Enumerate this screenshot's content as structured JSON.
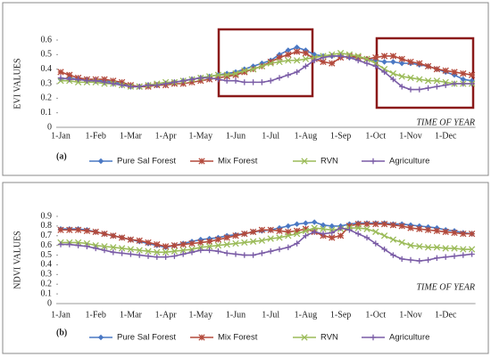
{
  "chart_data": [
    {
      "type": "line",
      "panel_label": "(a)",
      "ylabel": "EVI VALUES",
      "xlabel": "TIME OF YEAR",
      "categories": [
        "1-Jan",
        null,
        null,
        null,
        "1-Feb",
        null,
        null,
        null,
        "1-Mar",
        null,
        null,
        null,
        "1-Apr",
        null,
        null,
        null,
        "1-May",
        null,
        null,
        null,
        "1-Jun",
        null,
        null,
        null,
        "1-Jul",
        null,
        null,
        null,
        "1-Aug",
        null,
        null,
        null,
        "1-Sep",
        null,
        null,
        null,
        "1-Oct",
        null,
        null,
        null,
        "1-Nov",
        null,
        null,
        null,
        "1-Dec",
        null,
        null,
        null
      ],
      "ylim": [
        0,
        0.6
      ],
      "yticks": [
        0,
        0.1,
        0.2,
        0.3,
        0.4,
        0.5,
        0.6
      ],
      "series": [
        {
          "name": "Pure Sal Forest",
          "color": "#4a78c4",
          "marker": "diamond",
          "values": [
            0.33,
            0.34,
            0.33,
            0.33,
            0.32,
            0.32,
            0.31,
            0.3,
            0.28,
            0.28,
            0.29,
            0.29,
            0.3,
            0.31,
            0.32,
            0.33,
            0.34,
            0.35,
            0.36,
            0.37,
            0.38,
            0.4,
            0.42,
            0.44,
            0.46,
            0.5,
            0.53,
            0.55,
            0.53,
            0.5,
            0.49,
            0.49,
            0.49,
            0.48,
            0.48,
            0.47,
            0.46,
            0.45,
            0.45,
            0.44,
            0.44,
            0.43,
            0.42,
            0.4,
            0.38,
            0.36,
            0.33,
            0.32
          ]
        },
        {
          "name": "Mix Forest",
          "color": "#b34a3c",
          "marker": "star",
          "values": [
            0.38,
            0.36,
            0.34,
            0.33,
            0.33,
            0.33,
            0.32,
            0.31,
            0.29,
            0.28,
            0.28,
            0.29,
            0.29,
            0.3,
            0.3,
            0.31,
            0.32,
            0.33,
            0.34,
            0.35,
            0.36,
            0.38,
            0.4,
            0.42,
            0.45,
            0.48,
            0.5,
            0.52,
            0.51,
            0.47,
            0.45,
            0.44,
            0.48,
            0.49,
            0.48,
            0.47,
            0.48,
            0.49,
            0.49,
            0.47,
            0.45,
            0.44,
            0.42,
            0.4,
            0.39,
            0.38,
            0.37,
            0.36
          ]
        },
        {
          "name": "RVN",
          "color": "#9bbb59",
          "marker": "x",
          "values": [
            0.32,
            0.32,
            0.31,
            0.31,
            0.31,
            0.3,
            0.3,
            0.29,
            0.28,
            0.28,
            0.29,
            0.3,
            0.31,
            0.31,
            0.32,
            0.33,
            0.34,
            0.35,
            0.36,
            0.36,
            0.37,
            0.39,
            0.4,
            0.42,
            0.44,
            0.45,
            0.46,
            0.46,
            0.47,
            0.48,
            0.49,
            0.5,
            0.51,
            0.5,
            0.49,
            0.47,
            0.44,
            0.4,
            0.37,
            0.35,
            0.34,
            0.33,
            0.32,
            0.32,
            0.31,
            0.3,
            0.3,
            0.3
          ]
        },
        {
          "name": "Agriculture",
          "color": "#7a5ca6",
          "marker": "plus",
          "values": [
            0.34,
            0.33,
            0.33,
            0.32,
            0.32,
            0.31,
            0.3,
            0.29,
            0.28,
            0.28,
            0.29,
            0.29,
            0.3,
            0.31,
            0.32,
            0.33,
            0.34,
            0.34,
            0.33,
            0.32,
            0.32,
            0.31,
            0.31,
            0.31,
            0.32,
            0.34,
            0.36,
            0.38,
            0.42,
            0.46,
            0.48,
            0.49,
            0.49,
            0.48,
            0.46,
            0.44,
            0.42,
            0.38,
            0.33,
            0.28,
            0.26,
            0.26,
            0.27,
            0.28,
            0.29,
            0.3,
            0.3,
            0.3
          ]
        }
      ]
    },
    {
      "type": "line",
      "panel_label": "(b)",
      "ylabel": "NDVI VALUES",
      "xlabel": "TIME OF YEAR",
      "categories": [
        "1-Jan",
        null,
        null,
        null,
        "1-Feb",
        null,
        null,
        null,
        "1-Mar",
        null,
        null,
        null,
        "1-Apr",
        null,
        null,
        null,
        "1-May",
        null,
        null,
        null,
        "1-Jun",
        null,
        null,
        null,
        "1-Jul",
        null,
        null,
        null,
        "1-Aug",
        null,
        null,
        null,
        "1-Sep",
        null,
        null,
        null,
        "1-Oct",
        null,
        null,
        null,
        "1-Nov",
        null,
        null,
        null,
        "1-Dec",
        null,
        null,
        null
      ],
      "ylim": [
        0,
        0.9
      ],
      "yticks": [
        0,
        0.1,
        0.2,
        0.3,
        0.4,
        0.5,
        0.6,
        0.7,
        0.8,
        0.9
      ],
      "series": [
        {
          "name": "Pure Sal Forest",
          "color": "#4a78c4",
          "marker": "diamond",
          "values": [
            0.77,
            0.77,
            0.77,
            0.76,
            0.74,
            0.72,
            0.7,
            0.68,
            0.66,
            0.64,
            0.62,
            0.6,
            0.58,
            0.6,
            0.62,
            0.64,
            0.66,
            0.67,
            0.68,
            0.7,
            0.71,
            0.72,
            0.74,
            0.75,
            0.76,
            0.78,
            0.8,
            0.82,
            0.83,
            0.84,
            0.81,
            0.8,
            0.8,
            0.82,
            0.83,
            0.83,
            0.83,
            0.83,
            0.82,
            0.82,
            0.81,
            0.8,
            0.79,
            0.78,
            0.76,
            0.75,
            0.73,
            0.72
          ]
        },
        {
          "name": "Mix Forest",
          "color": "#b34a3c",
          "marker": "star",
          "values": [
            0.76,
            0.76,
            0.76,
            0.75,
            0.74,
            0.72,
            0.7,
            0.68,
            0.66,
            0.65,
            0.63,
            0.61,
            0.59,
            0.6,
            0.61,
            0.62,
            0.63,
            0.64,
            0.66,
            0.68,
            0.7,
            0.72,
            0.74,
            0.76,
            0.76,
            0.75,
            0.74,
            0.75,
            0.77,
            0.74,
            0.7,
            0.68,
            0.7,
            0.8,
            0.82,
            0.82,
            0.82,
            0.82,
            0.81,
            0.8,
            0.78,
            0.77,
            0.76,
            0.75,
            0.74,
            0.73,
            0.72,
            0.72
          ]
        },
        {
          "name": "RVN",
          "color": "#9bbb59",
          "marker": "x",
          "values": [
            0.63,
            0.63,
            0.63,
            0.62,
            0.6,
            0.59,
            0.58,
            0.57,
            0.56,
            0.55,
            0.54,
            0.53,
            0.53,
            0.54,
            0.55,
            0.56,
            0.58,
            0.59,
            0.6,
            0.61,
            0.62,
            0.63,
            0.64,
            0.65,
            0.67,
            0.68,
            0.7,
            0.72,
            0.75,
            0.78,
            0.77,
            0.76,
            0.77,
            0.78,
            0.78,
            0.77,
            0.74,
            0.7,
            0.66,
            0.63,
            0.6,
            0.59,
            0.58,
            0.58,
            0.57,
            0.57,
            0.56,
            0.56
          ]
        },
        {
          "name": "Agriculture",
          "color": "#7a5ca6",
          "marker": "plus",
          "values": [
            0.61,
            0.61,
            0.6,
            0.59,
            0.57,
            0.55,
            0.53,
            0.52,
            0.51,
            0.5,
            0.49,
            0.48,
            0.48,
            0.49,
            0.51,
            0.53,
            0.55,
            0.55,
            0.54,
            0.52,
            0.51,
            0.5,
            0.5,
            0.52,
            0.54,
            0.56,
            0.58,
            0.62,
            0.7,
            0.74,
            0.72,
            0.73,
            0.78,
            0.76,
            0.72,
            0.68,
            0.62,
            0.56,
            0.5,
            0.46,
            0.45,
            0.44,
            0.45,
            0.47,
            0.48,
            0.49,
            0.5,
            0.51
          ]
        }
      ]
    }
  ]
}
